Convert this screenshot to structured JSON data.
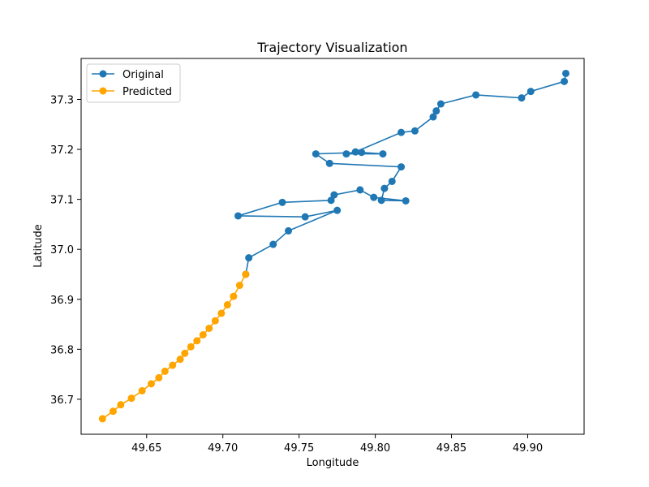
{
  "chart_data": {
    "type": "line",
    "title": "Trajectory Visualization",
    "xlabel": "Longitude",
    "ylabel": "Latitude",
    "xlim": [
      49.607,
      49.937
    ],
    "ylim": [
      36.63,
      37.382
    ],
    "xticks": [
      49.65,
      49.7,
      49.75,
      49.8,
      49.85,
      49.9
    ],
    "xtick_labels": [
      "49.65",
      "49.70",
      "49.75",
      "49.80",
      "49.85",
      "49.90"
    ],
    "yticks": [
      36.7,
      36.8,
      36.9,
      37.0,
      37.1,
      37.2,
      37.3
    ],
    "ytick_labels": [
      "36.7",
      "36.8",
      "36.9",
      "37.0",
      "37.1",
      "37.2",
      "37.3"
    ],
    "grid": false,
    "legend_position": "top-left",
    "series": [
      {
        "name": "Original",
        "color": "#1f77b4",
        "marker": "circle",
        "x": [
          49.925,
          49.924,
          49.902,
          49.896,
          49.866,
          49.843,
          49.84,
          49.838,
          49.826,
          49.817,
          49.787,
          49.781,
          49.805,
          49.791,
          49.761,
          49.77,
          49.817,
          49.811,
          49.806,
          49.804,
          49.82,
          49.799,
          49.79,
          49.773,
          49.771,
          49.739,
          49.71,
          49.754,
          49.775,
          49.743,
          49.733,
          49.717,
          49.715
        ],
        "y": [
          37.352,
          37.336,
          37.316,
          37.303,
          37.309,
          37.291,
          37.277,
          37.265,
          37.237,
          37.234,
          37.195,
          37.191,
          37.191,
          37.194,
          37.191,
          37.172,
          37.165,
          37.136,
          37.122,
          37.098,
          37.097,
          37.104,
          37.119,
          37.109,
          37.098,
          37.094,
          37.067,
          37.065,
          37.078,
          37.037,
          37.01,
          36.983,
          36.95
        ]
      },
      {
        "name": "Predicted",
        "color": "#ffa500",
        "marker": "circle",
        "x": [
          49.715,
          49.711,
          49.707,
          49.703,
          49.699,
          49.695,
          49.691,
          49.687,
          49.683,
          49.679,
          49.675,
          49.672,
          49.667,
          49.662,
          49.658,
          49.653,
          49.647,
          49.64,
          49.633,
          49.628,
          49.621
        ],
        "y": [
          36.95,
          36.928,
          36.906,
          36.889,
          36.872,
          36.857,
          36.842,
          36.829,
          36.817,
          36.805,
          36.792,
          36.78,
          36.768,
          36.756,
          36.743,
          36.731,
          36.717,
          36.702,
          36.689,
          36.676,
          36.661
        ]
      }
    ]
  }
}
